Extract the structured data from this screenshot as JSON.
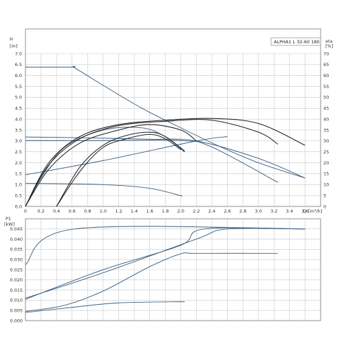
{
  "chart_data": [
    {
      "type": "line",
      "panel": "head",
      "title": "ALPHA1 L 32-60 180",
      "ylabel": "H",
      "yunit": "[m]",
      "y2label": "eta",
      "y2unit": "[%]",
      "xlabel": "Q",
      "xunit": "[m³/h]",
      "xlim": [
        0,
        3.8
      ],
      "ylim": [
        0,
        7.0
      ],
      "y2lim": [
        0,
        70
      ],
      "grid": true,
      "xticks": [
        "0",
        "0.2",
        "0.4",
        "0.6",
        "0.8",
        "1.0",
        "1.2",
        "1.4",
        "1.6",
        "1.8",
        "2.0",
        "2.2",
        "2.4",
        "2.6",
        "2.8",
        "3.0",
        "3.2",
        "3.4",
        "3.6"
      ],
      "yticks": [
        "0.0",
        "0.5",
        "1.0",
        "1.5",
        "2.0",
        "2.5",
        "3.0",
        "3.5",
        "4.0",
        "4.5",
        "5.0",
        "5.5",
        "6.0",
        "6.5",
        "7.0"
      ],
      "y2ticks": [
        "0",
        "5",
        "10",
        "15",
        "20",
        "25",
        "30",
        "35",
        "40",
        "45",
        "50",
        "55",
        "60",
        "65",
        "70"
      ],
      "colors": {
        "curve": "#3a5f80",
        "efficiency": "#202020",
        "grid": "#c8c8c8",
        "frame": "#777777"
      },
      "series": [
        {
          "kind": "curve",
          "x": [
            0,
            0.6,
            0.63,
            1.0,
            1.5,
            2.0,
            2.5,
            3.0,
            3.6
          ],
          "y": [
            6.38,
            6.38,
            6.36,
            5.55,
            4.5,
            3.6,
            2.75,
            2.0,
            1.3
          ]
        },
        {
          "kind": "curve",
          "x": [
            0,
            0.8,
            1.6,
            2.2,
            3.0,
            3.6
          ],
          "y": [
            3.18,
            3.14,
            3.08,
            3.0,
            2.2,
            1.3
          ]
        },
        {
          "kind": "curve",
          "x": [
            0,
            1.0,
            2.0,
            2.4,
            3.25
          ],
          "y": [
            3.02,
            3.02,
            3.02,
            2.72,
            1.1
          ]
        },
        {
          "kind": "curve",
          "x": [
            0,
            1.0,
            2.2,
            2.6
          ],
          "y": [
            1.45,
            2.1,
            3.0,
            3.2
          ]
        },
        {
          "kind": "curve",
          "x": [
            0,
            1.0,
            1.6,
            2.02
          ],
          "y": [
            1.06,
            1.0,
            0.83,
            0.47
          ]
        },
        {
          "kind": "curve",
          "x": [
            0,
            0.2,
            0.5,
            1.0,
            1.5,
            1.8,
            2.05
          ],
          "y": [
            0.0,
            1.3,
            2.7,
            3.5,
            3.6,
            3.2,
            2.55
          ]
        },
        {
          "kind": "efficiency",
          "x": [
            0,
            0.3,
            0.7,
            1.2,
            1.8,
            2.4,
            3.0,
            3.6
          ],
          "y2": [
            0,
            20,
            32,
            37.5,
            39.5,
            40.3,
            38.0,
            28.0
          ]
        },
        {
          "kind": "efficiency",
          "x": [
            0,
            0.3,
            0.7,
            1.2,
            1.8,
            2.4,
            3.0,
            3.25
          ],
          "y2": [
            0,
            19,
            31,
            37.0,
            39.0,
            39.5,
            34.0,
            28.5
          ]
        },
        {
          "kind": "efficiency",
          "x": [
            0,
            0.3,
            0.7,
            1.2,
            1.6,
            2.0,
            2.2
          ],
          "y2": [
            0,
            17,
            29,
            35.0,
            37.5,
            35.0,
            30.0
          ]
        },
        {
          "kind": "efficiency",
          "x": [
            0.4,
            0.7,
            1.0,
            1.3,
            1.6,
            1.8,
            2.05
          ],
          "y2": [
            0,
            18,
            28,
            32.5,
            34.0,
            32.0,
            25.0
          ]
        },
        {
          "kind": "efficiency",
          "x": [
            0.4,
            0.7,
            1.0,
            1.3,
            1.6,
            1.8,
            2.0
          ],
          "y2": [
            0,
            16,
            27,
            31.0,
            33.0,
            31.0,
            26.0
          ]
        }
      ]
    },
    {
      "type": "line",
      "panel": "power",
      "ylabel": "P1",
      "yunit": "[kW]",
      "xlim": [
        0,
        3.8
      ],
      "ylim": [
        0,
        0.05
      ],
      "grid": true,
      "yticks": [
        "0.000",
        "0.005",
        "0.010",
        "0.015",
        "0.020",
        "0.025",
        "0.030",
        "0.035",
        "0.040",
        "0.045"
      ],
      "series": [
        {
          "x": [
            0,
            0.63,
            3.6
          ],
          "y": [
            0.0275,
            0.045,
            0.045
          ]
        },
        {
          "x": [
            0,
            1.0,
            2.0,
            2.3,
            3.6
          ],
          "y": [
            0.0105,
            0.025,
            0.037,
            0.045,
            0.045
          ]
        },
        {
          "x": [
            0,
            1.0,
            2.2,
            2.6,
            3.6
          ],
          "y": [
            0.011,
            0.0235,
            0.04,
            0.045,
            0.045
          ]
        },
        {
          "x": [
            0,
            0.5,
            1.0,
            1.6,
            2.0,
            2.2,
            3.25
          ],
          "y": [
            0.0045,
            0.0075,
            0.0145,
            0.0265,
            0.0328,
            0.033,
            0.033
          ]
        },
        {
          "x": [
            0,
            0.6,
            1.2,
            2.05
          ],
          "y": [
            0.004,
            0.0065,
            0.0087,
            0.0093
          ]
        }
      ]
    }
  ]
}
